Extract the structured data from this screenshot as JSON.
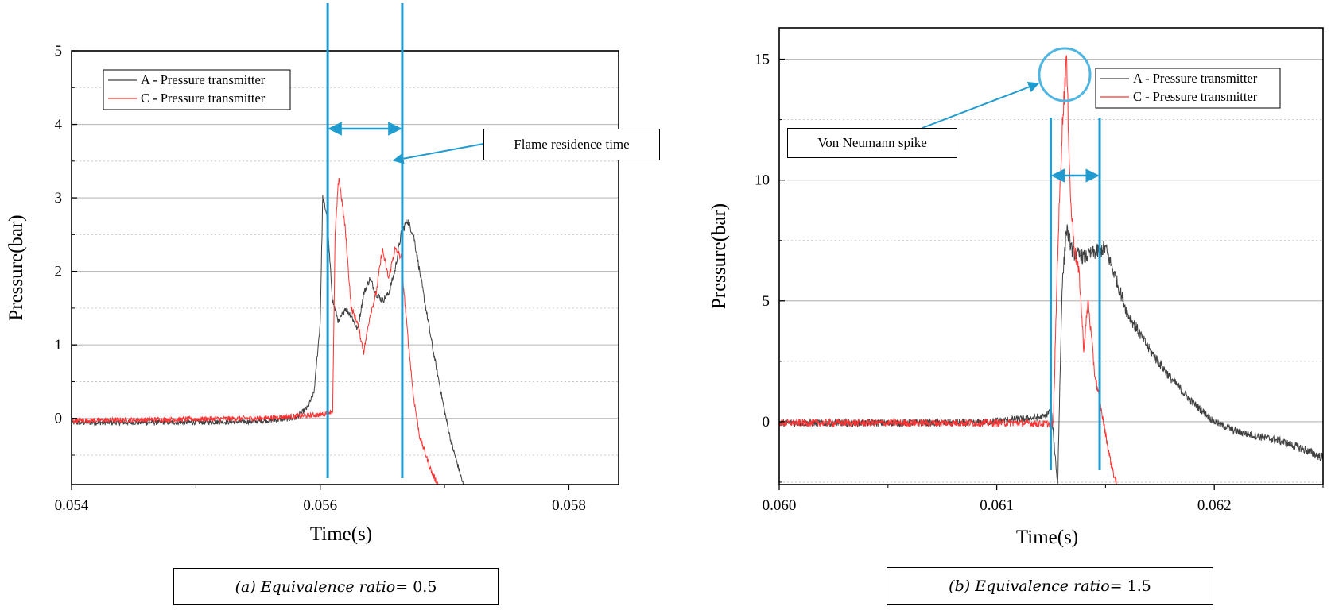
{
  "chart_data": [
    {
      "id": "a",
      "type": "line",
      "xlabel": "Time(s)",
      "ylabel": "Pressure(bar)",
      "xlim": [
        0.054,
        0.0584
      ],
      "ylim": [
        -0.9,
        5
      ],
      "xticks": [
        0.054,
        0.056,
        0.058
      ],
      "xtick_labels": [
        "0.054",
        "0.056",
        "0.058"
      ],
      "yticks": [
        0,
        1,
        2,
        3,
        4,
        5
      ],
      "ytick_labels": [
        "0",
        "1",
        "2",
        "3",
        "4",
        "5"
      ],
      "grid": "horizontal",
      "legend": "top-left",
      "series": [
        {
          "name": "A - Pressure transmitter",
          "color": "#404040",
          "x": [
            0.054,
            0.0552,
            0.0555,
            0.0558,
            0.0559,
            0.05595,
            0.056,
            0.05602,
            0.05605,
            0.0561,
            0.05615,
            0.0562,
            0.05625,
            0.0563,
            0.05635,
            0.0564,
            0.05645,
            0.0565,
            0.05655,
            0.0566,
            0.05665,
            0.0567,
            0.05675,
            0.0568,
            0.05685,
            0.0569,
            0.05695,
            0.057,
            0.05705,
            0.0571,
            0.05715
          ],
          "y": [
            -0.06,
            -0.05,
            -0.04,
            0.0,
            0.15,
            0.35,
            1.3,
            3.0,
            2.8,
            1.6,
            1.3,
            1.5,
            1.4,
            1.2,
            1.7,
            1.9,
            1.7,
            1.6,
            1.7,
            2.0,
            2.5,
            2.7,
            2.5,
            2.0,
            1.5,
            1.0,
            0.55,
            0.1,
            -0.3,
            -0.6,
            -0.9
          ]
        },
        {
          "name": "C - Pressure transmitter",
          "color": "#ff3333",
          "x": [
            0.054,
            0.0555,
            0.056,
            0.0561,
            0.05612,
            0.05615,
            0.0562,
            0.05625,
            0.0563,
            0.05635,
            0.0564,
            0.05645,
            0.0565,
            0.05655,
            0.0566,
            0.05665,
            0.0567,
            0.05675,
            0.0568,
            0.05685,
            0.0569,
            0.05695
          ],
          "y": [
            -0.03,
            0.0,
            0.05,
            0.1,
            2.5,
            3.3,
            2.6,
            1.5,
            1.3,
            0.9,
            1.4,
            1.7,
            2.3,
            1.9,
            2.3,
            2.2,
            1.2,
            0.3,
            -0.25,
            -0.5,
            -0.75,
            -0.9
          ]
        }
      ],
      "annotation": {
        "label": "Flame residence time",
        "marker_x": [
          0.05606,
          0.05666
        ]
      }
    },
    {
      "id": "b",
      "type": "line",
      "xlabel": "Time(s)",
      "ylabel": "Pressure(bar)",
      "xlim": [
        0.06,
        0.0625
      ],
      "ylim": [
        -2.6,
        16.3
      ],
      "xticks": [
        0.06,
        0.061,
        0.062
      ],
      "xtick_labels": [
        "0.060",
        "0.061",
        "0.062"
      ],
      "yticks": [
        0,
        5,
        10,
        15
      ],
      "ytick_labels": [
        "0",
        "5",
        "10",
        "15"
      ],
      "grid": "horizontal",
      "legend": "top-right",
      "series": [
        {
          "name": "A - Pressure transmitter",
          "color": "#404040",
          "x": [
            0.06,
            0.0609,
            0.0611,
            0.06122,
            0.06125,
            0.06128,
            0.0613,
            0.06132,
            0.06135,
            0.0614,
            0.06145,
            0.0615,
            0.0616,
            0.0617,
            0.0618,
            0.0619,
            0.062,
            0.0621,
            0.0622,
            0.0623,
            0.0624,
            0.0625
          ],
          "y": [
            -0.05,
            -0.05,
            0.1,
            0.2,
            0.5,
            -2.6,
            5.5,
            8.0,
            7.0,
            6.8,
            7.0,
            7.2,
            4.5,
            3.0,
            1.8,
            0.8,
            0.0,
            -0.4,
            -0.6,
            -0.8,
            -1.1,
            -1.5
          ]
        },
        {
          "name": "C - Pressure transmitter",
          "color": "#ff3333",
          "x": [
            0.06,
            0.0611,
            0.06126,
            0.06128,
            0.0613,
            0.06132,
            0.06134,
            0.06136,
            0.06138,
            0.0614,
            0.06142,
            0.06145,
            0.0615,
            0.06152,
            0.06155
          ],
          "y": [
            -0.05,
            -0.05,
            -0.1,
            7.0,
            12.0,
            15.1,
            9.0,
            7.0,
            6.0,
            3.0,
            5.0,
            2.0,
            -0.5,
            -1.5,
            -2.6
          ]
        }
      ],
      "annotation": {
        "label": "Von Neumann spike",
        "marker_x": [
          0.061248,
          0.061473
        ]
      }
    }
  ],
  "captions": {
    "a_prefix": "(a)",
    "a_var": "Equivalence ratio",
    "a_value": " = 0.5",
    "b_prefix": "(b)",
    "b_var": "Equivalence ratio",
    "b_value": " = 1.5"
  },
  "colors": {
    "annotation_blue": "#1f9bcf",
    "series_a": "#404040",
    "series_c": "#ff3333",
    "grid": "#bdbdbd"
  }
}
